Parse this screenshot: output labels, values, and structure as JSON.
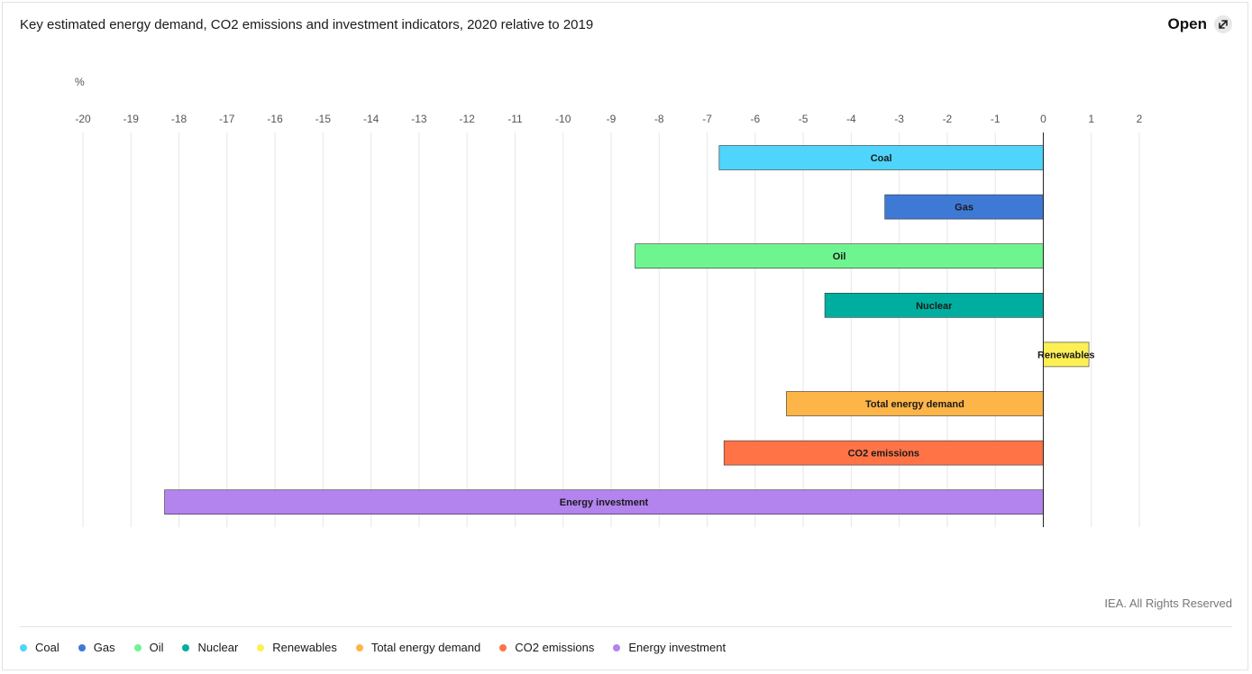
{
  "header": {
    "title": "Key estimated energy demand, CO2 emissions and investment indicators, 2020 relative to 2019",
    "open_label": "Open",
    "open_icon": "expand-arrow-icon"
  },
  "footer": {
    "copyright": "IEA. All Rights Reserved"
  },
  "chart_data": {
    "type": "bar",
    "orientation": "horizontal",
    "ylabel": "%",
    "xlim": [
      -20,
      2
    ],
    "ticks": [
      -20,
      -19,
      -18,
      -17,
      -16,
      -15,
      -14,
      -13,
      -12,
      -11,
      -10,
      -9,
      -8,
      -7,
      -6,
      -5,
      -4,
      -3,
      -2,
      -1,
      0,
      1,
      2
    ],
    "grid": true,
    "legend_position": "bottom",
    "categories": [
      "Coal",
      "Gas",
      "Oil",
      "Nuclear",
      "Renewables",
      "Total energy demand",
      "CO2 emissions",
      "Energy investment"
    ],
    "values": [
      -6.75,
      -3.3,
      -8.5,
      -4.55,
      0.95,
      -5.35,
      -6.65,
      -18.3
    ],
    "colors": [
      "#4fd5fb",
      "#3e79d6",
      "#6ef590",
      "#00ae9f",
      "#fdf055",
      "#feb547",
      "#ff7347",
      "#b383ee"
    ]
  }
}
